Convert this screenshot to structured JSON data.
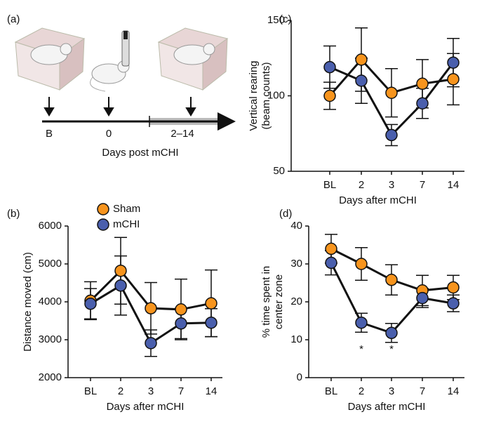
{
  "diagram": {
    "label": "(a)",
    "timepoints": [
      "B",
      "0",
      "2–14"
    ],
    "axis_label": "Days post mCHI"
  },
  "chart_data": [
    {
      "type": "line",
      "label": "(b)",
      "ylabel": [
        "Distance moved (cm)"
      ],
      "xlabel": "Days after mCHI",
      "categories": [
        "BL",
        "2",
        "3",
        "7",
        "14"
      ],
      "ylim": [
        2000,
        6000
      ],
      "yticks": [
        2000,
        3000,
        4000,
        5000,
        6000
      ],
      "legend": "top-left",
      "series": [
        {
          "name": "Sham",
          "color": "#f7941d",
          "values": [
            4030,
            4820,
            3830,
            3800,
            3960
          ],
          "errors": [
            500,
            880,
            680,
            800,
            880
          ]
        },
        {
          "name": "mCHI",
          "color": "#4a5fad",
          "values": [
            3950,
            4430,
            2910,
            3430,
            3450
          ],
          "errors": [
            400,
            780,
            350,
            400,
            370
          ]
        }
      ]
    },
    {
      "type": "line",
      "label": "(c)",
      "ylabel": [
        "Vertical rearing",
        "(beam counts)"
      ],
      "xlabel": "Days after mCHI",
      "categories": [
        "BL",
        "2",
        "3",
        "7",
        "14"
      ],
      "ylim": [
        50,
        150
      ],
      "yticks": [
        50,
        100,
        150
      ],
      "series": [
        {
          "name": "Sham",
          "color": "#f7941d",
          "values": [
            100,
            124,
            102,
            108,
            111
          ],
          "errors": [
            9,
            21,
            16,
            16,
            17
          ]
        },
        {
          "name": "mCHI",
          "color": "#4a5fad",
          "values": [
            119,
            110,
            74,
            95,
            122
          ],
          "errors": [
            14,
            15,
            7,
            10,
            16
          ]
        }
      ]
    },
    {
      "type": "line",
      "label": "(d)",
      "ylabel": [
        "% time spent in",
        "center zone"
      ],
      "xlabel": "Days after mCHI",
      "categories": [
        "BL",
        "2",
        "3",
        "7",
        "14"
      ],
      "ylim": [
        0,
        40
      ],
      "yticks": [
        0,
        10,
        20,
        30,
        40
      ],
      "annotations": [
        {
          "text": "*",
          "x": "2"
        },
        {
          "text": "*",
          "x": "3"
        }
      ],
      "series": [
        {
          "name": "Sham",
          "color": "#f7941d",
          "values": [
            34,
            30,
            25.8,
            23,
            23.8
          ],
          "errors": [
            3.8,
            4.3,
            4,
            4,
            3.2
          ]
        },
        {
          "name": "mCHI",
          "color": "#4a5fad",
          "values": [
            30.3,
            14.5,
            11.8,
            21,
            19.6
          ],
          "errors": [
            3.2,
            2.5,
            2.5,
            2.5,
            2.2
          ]
        }
      ]
    }
  ]
}
